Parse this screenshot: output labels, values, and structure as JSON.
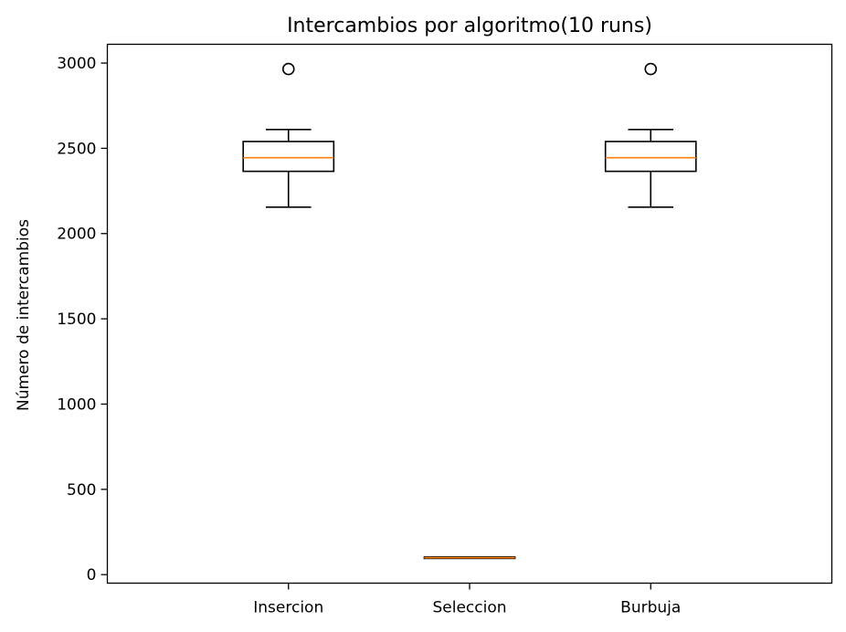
{
  "chart_data": {
    "type": "box",
    "title": "Intercambios por algoritmo(10 runs)",
    "xlabel": "",
    "ylabel": "Número de intercambios",
    "categories": [
      "Insercion",
      "Seleccion",
      "Burbuja"
    ],
    "ylim": [
      -50,
      3110
    ],
    "yticks": [
      0,
      500,
      1000,
      1500,
      2000,
      2500,
      3000
    ],
    "grid": false,
    "boxes": [
      {
        "name": "Insercion",
        "whisker_low": 2155,
        "q1": 2365,
        "median": 2445,
        "q3": 2540,
        "whisker_high": 2610,
        "outliers": [
          2965
        ]
      },
      {
        "name": "Seleccion",
        "whisker_low": 99,
        "q1": 99,
        "median": 99,
        "q3": 99,
        "whisker_high": 99,
        "outliers": []
      },
      {
        "name": "Burbuja",
        "whisker_low": 2155,
        "q1": 2365,
        "median": 2445,
        "q3": 2540,
        "whisker_high": 2610,
        "outliers": [
          2965
        ]
      }
    ],
    "colors": {
      "box": "#000000",
      "median": "#ff7f0e",
      "outlier": "#000000"
    }
  }
}
